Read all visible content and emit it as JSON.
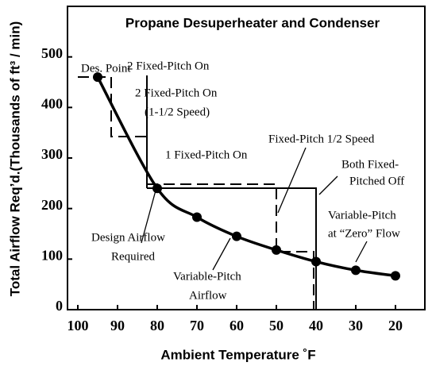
{
  "chart_data": {
    "type": "line",
    "title": "Propane Desuperheater and Condenser",
    "x_label": "Ambient Temperature ˚F",
    "y_label": "Total Airflow Req’d.(Thousands of ft³ / min)",
    "x": [
      95,
      80,
      70,
      60,
      50,
      40,
      30,
      20
    ],
    "series": [
      {
        "name": "Design Airflow Required",
        "color": "#000000",
        "values": [
          460,
          240,
          183,
          145,
          118,
          95,
          78,
          67
        ]
      }
    ],
    "xlim": [
      102.6,
      12.6
    ],
    "xticks": [
      100,
      90,
      80,
      70,
      60,
      50,
      40,
      30,
      20
    ],
    "ylim": [
      0,
      600
    ],
    "yticks": [
      0,
      100,
      200,
      300,
      400,
      500
    ],
    "annotations": [
      "Des. Point",
      "2 Fixed-Pitch On",
      "2 Fixed-Pitch On",
      "(1-1/2 Speed)",
      "1 Fixed-Pitch On",
      "Fixed-Pitch 1/2 Speed",
      "Both Fixed-",
      "Pitched Off",
      "Variable-Pitch",
      "at “Zero” Flow",
      "Design Airflow",
      "Required",
      "Variable-Pitch",
      "Airflow"
    ]
  }
}
